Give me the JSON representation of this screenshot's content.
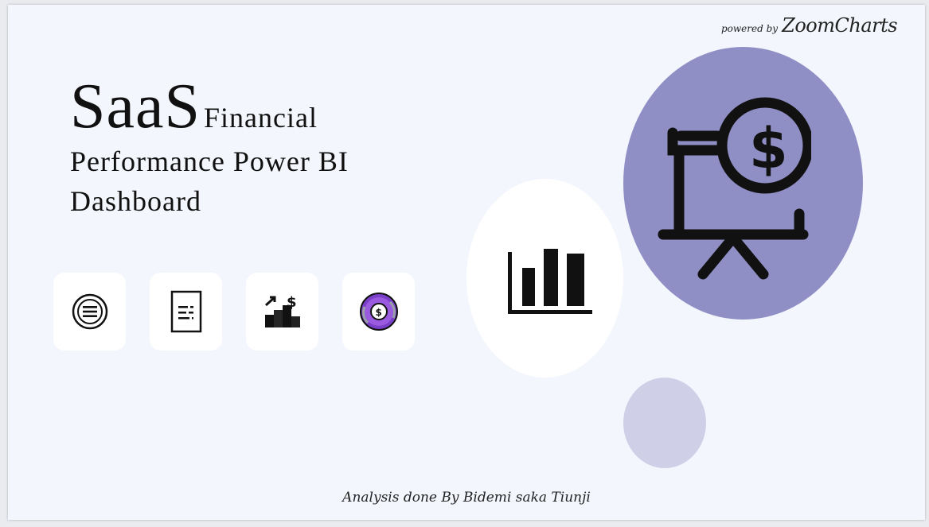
{
  "header": {
    "powered_prefix": "powered by",
    "brand": "ZoomCharts"
  },
  "title": {
    "big": "SaaS",
    "word2": "Financial",
    "line2": "Performance Power BI",
    "line3": "Dashboard"
  },
  "nav_tiles": [
    {
      "icon": "menu-circle-icon"
    },
    {
      "icon": "report-document-icon"
    },
    {
      "icon": "growth-bars-dollar-icon"
    },
    {
      "icon": "gear-dollar-icon"
    }
  ],
  "decor": {
    "colors": {
      "purple": "#8f8fc6",
      "lilac": "#cfd0e8",
      "white": "#ffffff",
      "background": "#f3f6fc"
    }
  },
  "footer": {
    "credit": "Analysis done By Bidemi saka Tiunji"
  }
}
